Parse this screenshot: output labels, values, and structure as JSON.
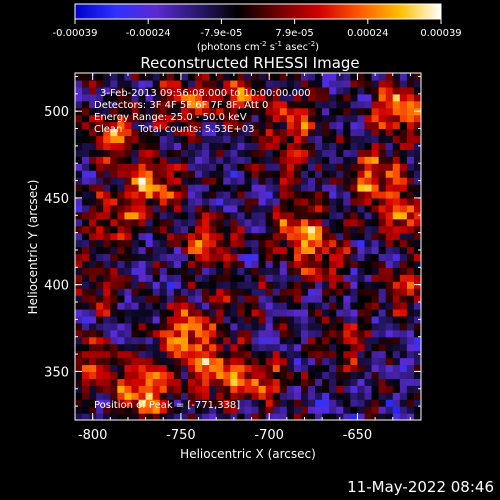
{
  "chart_data": {
    "type": "heatmap",
    "title": "Reconstructed RHESSI Image",
    "xlabel": "Heliocentric X (arcsec)",
    "ylabel": "Heliocentric Y (arcsec)",
    "xlim": [
      -810,
      -614
    ],
    "ylim": [
      322,
      522
    ],
    "x_ticks": [
      -800,
      -750,
      -700,
      -650
    ],
    "y_ticks": [
      350,
      400,
      450,
      500
    ],
    "colorbar": {
      "ticks": [
        "-0.00039",
        "-0.00024",
        "-7.9e-05",
        "7.9e-05",
        "0.00024",
        "0.00039"
      ],
      "label_parts": {
        "a": "(photons cm",
        "b": "-2",
        "c": " s",
        "d": "-1",
        "e": " asec",
        "f": "-2",
        "g": ")"
      },
      "range": [
        -0.00039,
        0.00039
      ],
      "colors": [
        "#0000cc",
        "#3030ff",
        "#5a2ad0",
        "#2a1870",
        "#000000",
        "#700000",
        "#d00000",
        "#ff5a00",
        "#ffc000",
        "#ffffff"
      ]
    },
    "annotations": [
      "3-Feb-2013 09:56:08.000 to 10:00:00.000",
      "Detectors: 3F 4F 5F 6F 7F 8F, Att 0",
      "Energy Range: 25.0 - 50.0 keV",
      "Clean     Total counts: 5.53E+03"
    ],
    "peak_label": "Position of Peak = [-771,338]",
    "hotspots": [
      {
        "x": -788,
        "y": 487,
        "v": 0.0003
      },
      {
        "x": -748,
        "y": 505,
        "v": 0.00028
      },
      {
        "x": -718,
        "y": 509,
        "v": 0.00026
      },
      {
        "x": -685,
        "y": 498,
        "v": 0.00025
      },
      {
        "x": -627,
        "y": 502,
        "v": 0.00036
      },
      {
        "x": -640,
        "y": 462,
        "v": 0.00033
      },
      {
        "x": -622,
        "y": 440,
        "v": 0.0003
      },
      {
        "x": -683,
        "y": 432,
        "v": 0.00032
      },
      {
        "x": -669,
        "y": 414,
        "v": 0.00022
      },
      {
        "x": -766,
        "y": 457,
        "v": 0.00033
      },
      {
        "x": -788,
        "y": 437,
        "v": 0.00024
      },
      {
        "x": -735,
        "y": 425,
        "v": 0.00026
      },
      {
        "x": -795,
        "y": 398,
        "v": 0.00018
      },
      {
        "x": -748,
        "y": 372,
        "v": 0.00034
      },
      {
        "x": -730,
        "y": 351,
        "v": 0.00032
      },
      {
        "x": -705,
        "y": 344,
        "v": 0.00026
      },
      {
        "x": -771,
        "y": 338,
        "v": 0.00039
      },
      {
        "x": -800,
        "y": 357,
        "v": 0.00022
      },
      {
        "x": -657,
        "y": 366,
        "v": 0.0002
      },
      {
        "x": -622,
        "y": 398,
        "v": 0.00022
      },
      {
        "x": -690,
        "y": 472,
        "v": 0.00016
      },
      {
        "x": -720,
        "y": 392,
        "v": 0.00014
      }
    ]
  },
  "footer_date": "11-May-2022 08:46"
}
